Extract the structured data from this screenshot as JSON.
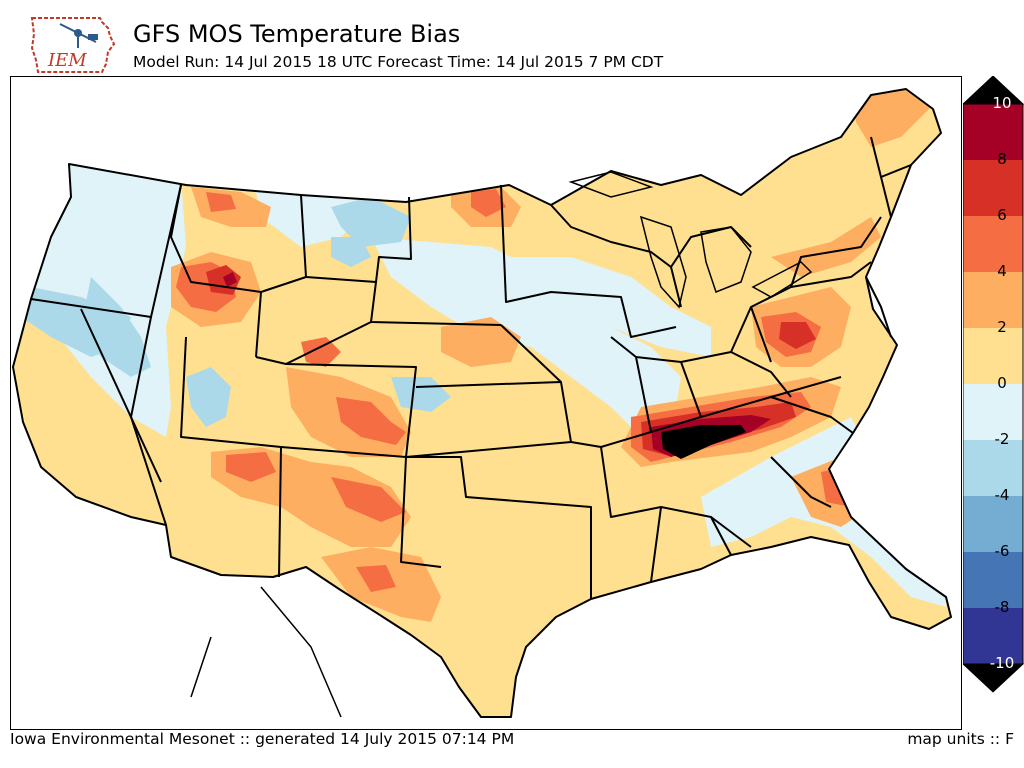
{
  "header": {
    "logo_text": "IEM",
    "title": "GFS MOS Temperature Bias",
    "subtitle": "Model Run: 14 Jul 2015 18 UTC Forecast Time: 14 Jul 2015 7 PM CDT"
  },
  "colorbar": {
    "labels": [
      "10",
      "8",
      "6",
      "4",
      "2",
      "0",
      "-2",
      "-4",
      "-6",
      "-8",
      "-10"
    ],
    "bands": [
      {
        "range": "8 to 10",
        "color": "#a50026"
      },
      {
        "range": "6 to 8",
        "color": "#d73027"
      },
      {
        "range": "4 to 6",
        "color": "#f46d43"
      },
      {
        "range": "2 to 4",
        "color": "#fdae61"
      },
      {
        "range": "0 to 2",
        "color": "#fee090"
      },
      {
        "range": "-2 to 0",
        "color": "#e0f3f8"
      },
      {
        "range": "-4 to -2",
        "color": "#abd9e9"
      },
      {
        "range": "-6 to -4",
        "color": "#74add1"
      },
      {
        "range": "-8 to -6",
        "color": "#4575b4"
      },
      {
        "range": "-10 to -8",
        "color": "#313695"
      }
    ],
    "over_color": "#000000",
    "under_color": "#000000"
  },
  "footer": {
    "credit": "Iowa Environmental Mesonet :: generated 14 July 2015 07:14 PM",
    "units": "map units :: F"
  }
}
